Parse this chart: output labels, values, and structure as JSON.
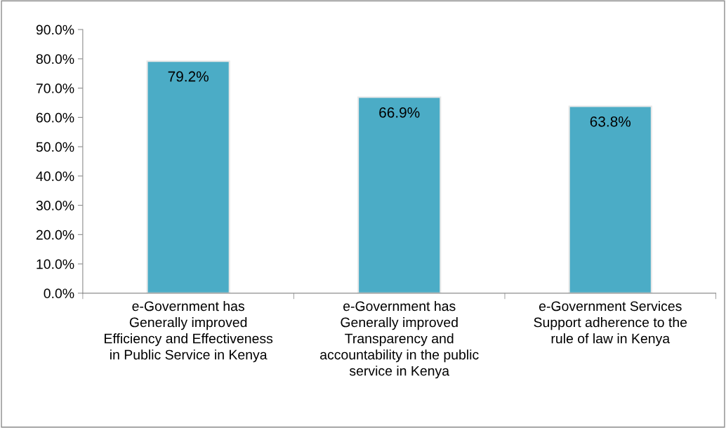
{
  "chart_data": {
    "type": "bar",
    "categories": [
      "e-Government has\nGenerally improved\nEfficiency and Effectiveness\nin Public Service in Kenya",
      "e-Government has\nGenerally improved\nTransparency and\naccountability in the public\nservice in Kenya",
      "e-Government Services\nSupport adherence to the\nrule of law in Kenya"
    ],
    "values": [
      79.2,
      66.9,
      63.8
    ],
    "value_labels": [
      "79.2%",
      "66.9%",
      "63.8%"
    ],
    "color": "#4bacc6",
    "ylim": [
      0,
      90
    ],
    "yticks": [
      {
        "value": 0,
        "label": "0.0%"
      },
      {
        "value": 10,
        "label": "10.0%"
      },
      {
        "value": 20,
        "label": "20.0%"
      },
      {
        "value": 30,
        "label": "30.0%"
      },
      {
        "value": 40,
        "label": "40.0%"
      },
      {
        "value": 50,
        "label": "50.0%"
      },
      {
        "value": 60,
        "label": "60.0%"
      },
      {
        "value": 70,
        "label": "70.0%"
      },
      {
        "value": 80,
        "label": "80.0%"
      },
      {
        "value": 90,
        "label": "90.0%"
      }
    ],
    "grid": false,
    "legend": false
  }
}
